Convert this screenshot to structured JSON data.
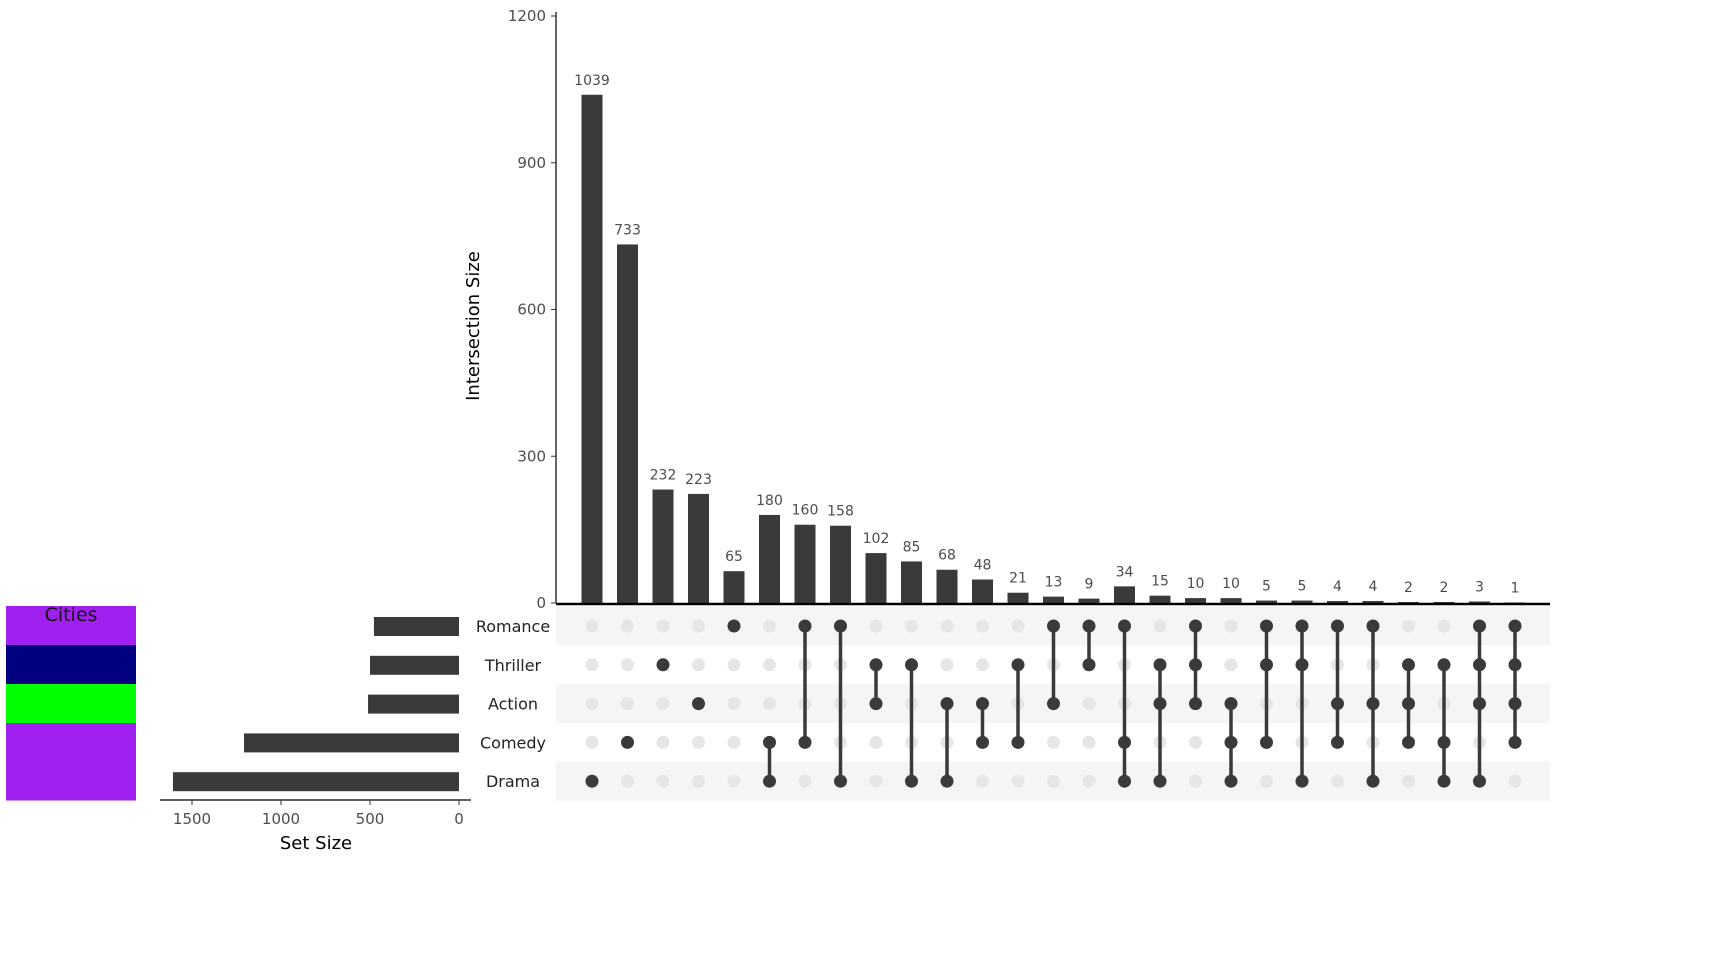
{
  "chart_data": {
    "type": "upset",
    "ylabel": "Intersection Size",
    "y_ticks": [
      0,
      300,
      600,
      900,
      1200
    ],
    "ylim": [
      0,
      1200
    ],
    "sets": [
      "Romance",
      "Thriller",
      "Action",
      "Comedy",
      "Drama"
    ],
    "set_size_label": "Set Size",
    "set_size_ticks": [
      1500,
      1000,
      500,
      0
    ],
    "set_sizes": [
      478,
      500,
      511,
      1208,
      1607
    ],
    "annotation": {
      "title": "Cities",
      "colors": [
        "#a020f0",
        "#000080",
        "#00ff00",
        "#a020f0",
        "#a020f0"
      ]
    },
    "intersections": [
      {
        "value": 1039,
        "sets": [
          "Drama"
        ]
      },
      {
        "value": 733,
        "sets": [
          "Comedy"
        ]
      },
      {
        "value": 232,
        "sets": [
          "Thriller"
        ]
      },
      {
        "value": 223,
        "sets": [
          "Action"
        ]
      },
      {
        "value": 65,
        "sets": [
          "Romance"
        ]
      },
      {
        "value": 180,
        "sets": [
          "Comedy",
          "Drama"
        ]
      },
      {
        "value": 160,
        "sets": [
          "Romance",
          "Comedy"
        ]
      },
      {
        "value": 158,
        "sets": [
          "Romance",
          "Drama"
        ]
      },
      {
        "value": 102,
        "sets": [
          "Thriller",
          "Action"
        ]
      },
      {
        "value": 85,
        "sets": [
          "Thriller",
          "Drama"
        ]
      },
      {
        "value": 68,
        "sets": [
          "Action",
          "Drama"
        ]
      },
      {
        "value": 48,
        "sets": [
          "Action",
          "Comedy"
        ]
      },
      {
        "value": 21,
        "sets": [
          "Thriller",
          "Comedy"
        ]
      },
      {
        "value": 13,
        "sets": [
          "Romance",
          "Action"
        ]
      },
      {
        "value": 9,
        "sets": [
          "Romance",
          "Thriller"
        ]
      },
      {
        "value": 34,
        "sets": [
          "Romance",
          "Comedy",
          "Drama"
        ]
      },
      {
        "value": 15,
        "sets": [
          "Thriller",
          "Action",
          "Drama"
        ]
      },
      {
        "value": 10,
        "sets": [
          "Romance",
          "Thriller",
          "Action"
        ]
      },
      {
        "value": 10,
        "sets": [
          "Action",
          "Comedy",
          "Drama"
        ]
      },
      {
        "value": 5,
        "sets": [
          "Romance",
          "Thriller",
          "Comedy"
        ]
      },
      {
        "value": 5,
        "sets": [
          "Romance",
          "Thriller",
          "Drama"
        ]
      },
      {
        "value": 4,
        "sets": [
          "Romance",
          "Action",
          "Comedy"
        ]
      },
      {
        "value": 4,
        "sets": [
          "Romance",
          "Action",
          "Drama"
        ]
      },
      {
        "value": 2,
        "sets": [
          "Thriller",
          "Action",
          "Comedy"
        ]
      },
      {
        "value": 2,
        "sets": [
          "Thriller",
          "Comedy",
          "Drama"
        ]
      },
      {
        "value": 3,
        "sets": [
          "Romance",
          "Thriller",
          "Action",
          "Drama"
        ]
      },
      {
        "value": 1,
        "sets": [
          "Romance",
          "Thriller",
          "Action",
          "Comedy"
        ]
      }
    ],
    "colors": {
      "bar": "#3a3a3a",
      "dot_empty": "#e6e6e6",
      "stripe": "#f5f5f5",
      "text": "#4d4d4d"
    }
  }
}
